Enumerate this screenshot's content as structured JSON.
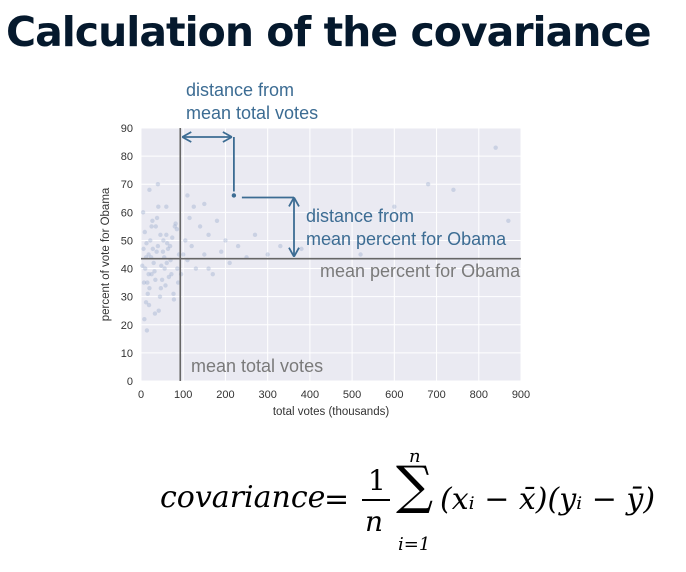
{
  "title": "Calculation of the covariance",
  "annotations": {
    "dist_x_line1": "distance from",
    "dist_x_line2": "mean total votes",
    "dist_y_line1": "distance from",
    "dist_y_line2": "mean percent for Obama",
    "mean_y_label": "mean percent for Obama",
    "mean_x_label": "mean total votes"
  },
  "colors": {
    "annotation": "#3c6c93",
    "plot_bg": "#eaeaf2",
    "points": "#8fa4c8",
    "mean_line": "#666666",
    "mean_label": "#7a7a7a"
  },
  "chart_data": {
    "type": "scatter",
    "xlabel": "total votes (thousands)",
    "ylabel": "percent of vote for Obama",
    "xlim": [
      0,
      900
    ],
    "ylim": [
      0,
      90
    ],
    "xticks": [
      0,
      100,
      200,
      300,
      400,
      500,
      600,
      700,
      800,
      900
    ],
    "yticks": [
      0,
      10,
      20,
      30,
      40,
      50,
      60,
      70,
      80,
      90
    ],
    "grid": true,
    "mean_x": 93,
    "mean_y": 43.5,
    "highlight_point": {
      "x": 220,
      "y": 66
    },
    "points": [
      [
        8,
        22
      ],
      [
        12,
        28
      ],
      [
        15,
        35
      ],
      [
        10,
        40
      ],
      [
        18,
        45
      ],
      [
        22,
        50
      ],
      [
        25,
        38
      ],
      [
        30,
        42
      ],
      [
        35,
        55
      ],
      [
        40,
        48
      ],
      [
        5,
        60
      ],
      [
        45,
        30
      ],
      [
        50,
        36
      ],
      [
        55,
        44
      ],
      [
        60,
        52
      ],
      [
        14,
        18
      ],
      [
        20,
        33
      ],
      [
        28,
        47
      ],
      [
        32,
        39
      ],
      [
        38,
        58
      ],
      [
        42,
        25
      ],
      [
        48,
        41
      ],
      [
        52,
        46
      ],
      [
        58,
        34
      ],
      [
        62,
        49
      ],
      [
        66,
        37
      ],
      [
        70,
        43
      ],
      [
        74,
        51
      ],
      [
        78,
        29
      ],
      [
        82,
        56
      ],
      [
        86,
        40
      ],
      [
        90,
        45
      ],
      [
        6,
        47
      ],
      [
        9,
        53
      ],
      [
        16,
        31
      ],
      [
        24,
        44
      ],
      [
        27,
        57
      ],
      [
        34,
        36
      ],
      [
        46,
        52
      ],
      [
        56,
        40
      ],
      [
        64,
        47
      ],
      [
        72,
        38
      ],
      [
        80,
        55
      ],
      [
        88,
        35
      ],
      [
        3,
        41
      ],
      [
        13,
        49
      ],
      [
        19,
        27
      ],
      [
        37,
        46
      ],
      [
        41,
        62
      ],
      [
        47,
        33
      ],
      [
        53,
        50
      ],
      [
        61,
        42
      ],
      [
        69,
        48
      ],
      [
        77,
        31
      ],
      [
        85,
        54
      ],
      [
        95,
        38
      ],
      [
        100,
        45
      ],
      [
        105,
        50
      ],
      [
        110,
        43
      ],
      [
        115,
        58
      ],
      [
        120,
        48
      ],
      [
        125,
        62
      ],
      [
        130,
        40
      ],
      [
        140,
        55
      ],
      [
        150,
        45
      ],
      [
        160,
        52
      ],
      [
        170,
        38
      ],
      [
        180,
        57
      ],
      [
        190,
        46
      ],
      [
        200,
        50
      ],
      [
        210,
        42
      ],
      [
        230,
        48
      ],
      [
        250,
        44
      ],
      [
        270,
        52
      ],
      [
        300,
        45
      ],
      [
        330,
        48
      ],
      [
        20,
        68
      ],
      [
        40,
        70
      ],
      [
        150,
        63
      ],
      [
        110,
        66
      ],
      [
        380,
        47
      ],
      [
        450,
        50
      ],
      [
        520,
        45
      ],
      [
        680,
        70
      ],
      [
        740,
        68
      ],
      [
        840,
        83
      ],
      [
        870,
        57
      ],
      [
        600,
        62
      ],
      [
        160,
        40
      ],
      [
        60,
        62
      ],
      [
        25,
        55
      ],
      [
        7,
        35
      ],
      [
        12,
        44
      ],
      [
        33,
        24
      ],
      [
        18,
        38
      ]
    ]
  },
  "formula": {
    "lhs": "covariance",
    "eq": "=",
    "numerator": "1",
    "denominator": "n",
    "sum_symbol": "∑",
    "sum_upper": "n",
    "sum_lower": "i=1",
    "terms": "(xᵢ − x̄)(yᵢ − ȳ)"
  }
}
